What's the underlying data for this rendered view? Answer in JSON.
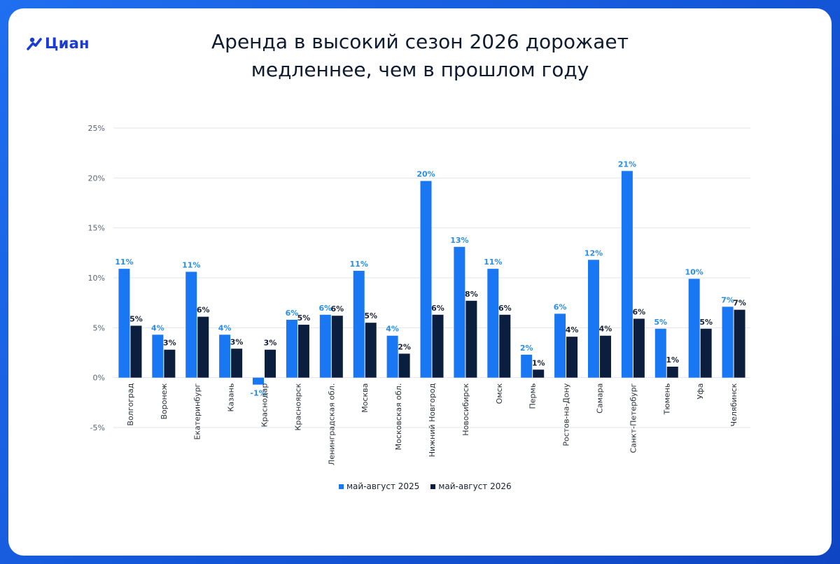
{
  "brand": {
    "name": "Циан"
  },
  "title_lines": [
    "Аренда в высокий сезон 2026 дорожает",
    "медленнее, чем в прошлом году"
  ],
  "colors": {
    "series1": "#1977f3",
    "series2": "#0c1e3d",
    "label1": "#2a8de6",
    "label2": "#1b2230",
    "grid": "#e3e6ea"
  },
  "chart_data": {
    "type": "bar",
    "title": "Аренда в высокий сезон 2026 дорожает медленнее, чем в прошлом году",
    "categories": [
      "Волгоград",
      "Воронеж",
      "Екатеринбург",
      "Казань",
      "Краснодар",
      "Красноярск",
      "Ленинградская обл.",
      "Москва",
      "Московская обл.",
      "Нижний Новгород",
      "Новосибирск",
      "Омск",
      "Пермь",
      "Ростов-на-Дону",
      "Самара",
      "Санкт-Петербург",
      "Тюмень",
      "Уфа",
      "Челябинск"
    ],
    "series": [
      {
        "name": "май-август 2025",
        "values": [
          10.9,
          4.3,
          10.6,
          4.3,
          -0.7,
          5.8,
          6.3,
          10.7,
          4.2,
          19.7,
          13.1,
          10.9,
          2.3,
          6.4,
          11.8,
          20.7,
          4.9,
          9.9,
          7.1
        ],
        "labels": [
          "11%",
          "4%",
          "11%",
          "4%",
          "-1%",
          "6%",
          "6%",
          "11%",
          "4%",
          "20%",
          "13%",
          "11%",
          "2%",
          "6%",
          "12%",
          "21%",
          "5%",
          "10%",
          "7%"
        ]
      },
      {
        "name": "май-август 2026",
        "values": [
          5.2,
          2.8,
          6.1,
          2.9,
          2.8,
          5.3,
          6.2,
          5.5,
          2.4,
          6.3,
          7.7,
          6.3,
          0.8,
          4.1,
          4.2,
          5.9,
          1.1,
          4.9,
          6.8
        ],
        "labels": [
          "5%",
          "3%",
          "6%",
          "3%",
          "3%",
          "5%",
          "6%",
          "5%",
          "2%",
          "6%",
          "8%",
          "6%",
          "1%",
          "4%",
          "4%",
          "6%",
          "1%",
          "5%",
          "7%"
        ]
      }
    ],
    "yticks": [
      "-5%",
      "0%",
      "5%",
      "10%",
      "15%",
      "20%",
      "25%"
    ],
    "ytick_values": [
      -5,
      0,
      5,
      10,
      15,
      20,
      25
    ],
    "ylim": [
      -5,
      25
    ],
    "grid": true,
    "legend": "bottom"
  }
}
